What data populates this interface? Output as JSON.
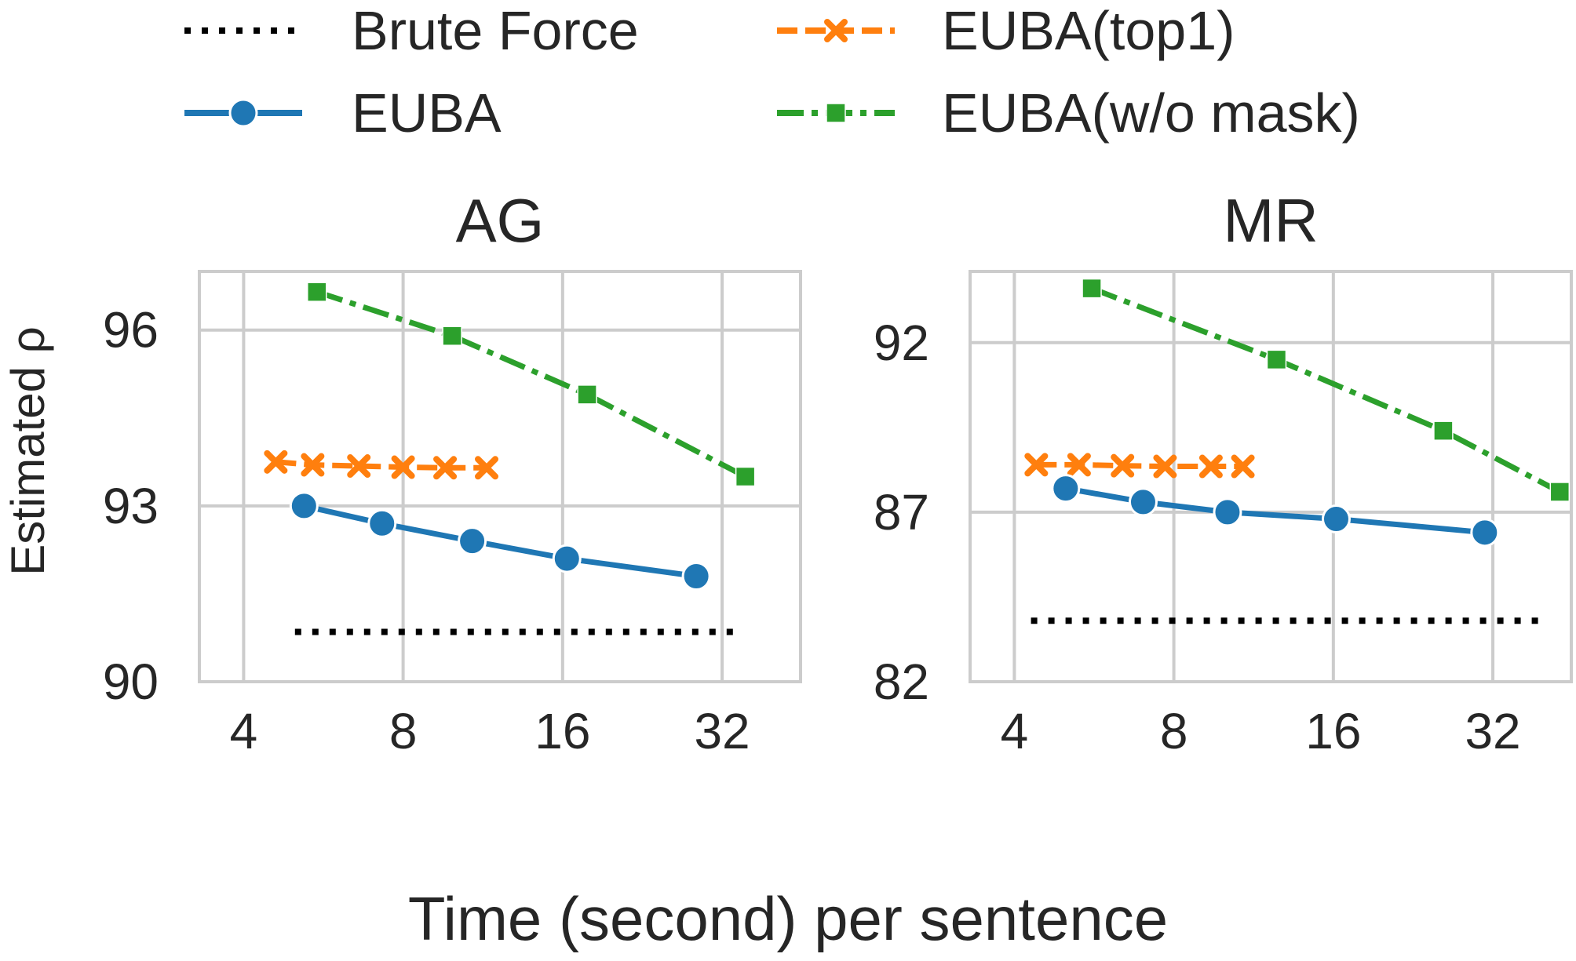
{
  "legend": {
    "placement": "top",
    "entries": [
      {
        "name": "Brute Force",
        "color": "#000000",
        "marker": "none",
        "dash": "dotted"
      },
      {
        "name": "EUBA(top1)",
        "color": "#ff7f0e",
        "marker": "x",
        "dash": "dashed"
      },
      {
        "name": "EUBA",
        "color": "#1f77b4",
        "marker": "circle",
        "dash": "solid"
      },
      {
        "name": "EUBA(w/o mask)",
        "color": "#2ca02c",
        "marker": "square",
        "dash": "dashdot"
      }
    ]
  },
  "xlabel": "Time (second) per sentence",
  "ylabel": "Estimated ρ",
  "chart_data": [
    {
      "type": "line",
      "title": "AG",
      "xscale": "log2",
      "xlim": [
        3.3,
        45
      ],
      "xticks": [
        4,
        8,
        16,
        32
      ],
      "ylim": [
        90,
        97.0
      ],
      "yticks": [
        90,
        93,
        96
      ],
      "grid": true,
      "series": [
        {
          "name": "Brute Force",
          "x": [
            5.0,
            34.5
          ],
          "y": [
            90.85,
            90.85
          ]
        },
        {
          "name": "EUBA(top1)",
          "x": [
            4.6,
            5.4,
            6.6,
            8.0,
            9.6,
            11.5
          ],
          "y": [
            93.75,
            93.7,
            93.68,
            93.66,
            93.65,
            93.65
          ]
        },
        {
          "name": "EUBA",
          "x": [
            5.2,
            7.3,
            10.8,
            16.3,
            28.6
          ],
          "y": [
            93.0,
            92.7,
            92.4,
            92.1,
            91.8
          ]
        },
        {
          "name": "EUBA(w/o mask)",
          "x": [
            5.5,
            9.9,
            17.8,
            35.4
          ],
          "y": [
            96.65,
            95.9,
            94.9,
            93.5
          ]
        }
      ]
    },
    {
      "type": "line",
      "title": "MR",
      "xscale": "log2",
      "xlim": [
        3.3,
        45
      ],
      "xticks": [
        4,
        8,
        16,
        32
      ],
      "ylim": [
        82,
        94.1
      ],
      "yticks": [
        82,
        87,
        92
      ],
      "grid": true,
      "series": [
        {
          "name": "Brute Force",
          "x": [
            4.3,
            40.0
          ],
          "y": [
            83.8,
            83.8
          ]
        },
        {
          "name": "EUBA(top1)",
          "x": [
            4.4,
            5.3,
            6.4,
            7.7,
            9.4,
            10.8
          ],
          "y": [
            88.4,
            88.4,
            88.37,
            88.35,
            88.35,
            88.35
          ]
        },
        {
          "name": "EUBA",
          "x": [
            5.0,
            7.0,
            10.1,
            16.2,
            30.9
          ],
          "y": [
            87.7,
            87.3,
            87.0,
            86.8,
            86.4
          ]
        },
        {
          "name": "EUBA(w/o mask)",
          "x": [
            5.6,
            12.5,
            25.8,
            42.8
          ],
          "y": [
            93.6,
            91.5,
            89.4,
            87.6
          ]
        }
      ]
    }
  ]
}
